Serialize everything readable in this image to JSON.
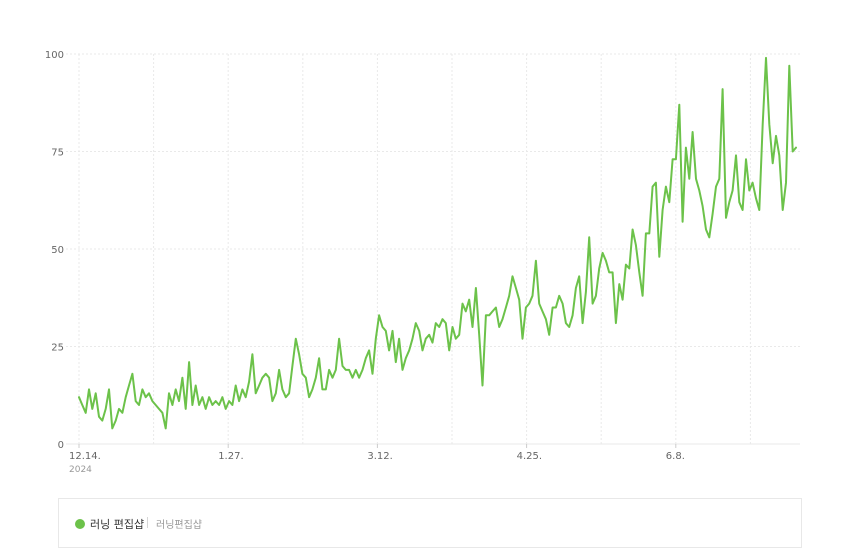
{
  "chart_data": {
    "type": "line",
    "title": "",
    "xlabel": "",
    "ylabel": "",
    "ylim": [
      0,
      100
    ],
    "y_ticks": [
      "0",
      "25",
      "50",
      "75",
      "100"
    ],
    "x_ticks": [
      "12.14.",
      "1.27.",
      "3.12.",
      "4.25.",
      "6.8."
    ],
    "x_year_label": "2024",
    "grid": true,
    "legend_position": "bottom",
    "colors": {
      "series": "#6cc24a",
      "grid": "#e9e9e9",
      "axis_text": "#666666"
    },
    "series": [
      {
        "name": "러닝 편집샵",
        "values": [
          12,
          10,
          8,
          14,
          9,
          13,
          7,
          6,
          9,
          14,
          4,
          6,
          9,
          8,
          12,
          15,
          18,
          11,
          10,
          14,
          12,
          13,
          11,
          10,
          9,
          8,
          4,
          13,
          10,
          14,
          11,
          17,
          9,
          21,
          10,
          15,
          10,
          12,
          9,
          12,
          10,
          11,
          10,
          12,
          9,
          11,
          10,
          15,
          11,
          14,
          12,
          16,
          23,
          13,
          15,
          17,
          18,
          17,
          11,
          13,
          19,
          14,
          12,
          13,
          20,
          27,
          23,
          18,
          17,
          12,
          14,
          17,
          22,
          14,
          14,
          19,
          17,
          19,
          27,
          20,
          19,
          19,
          17,
          19,
          17,
          19,
          22,
          24,
          18,
          27,
          33,
          30,
          29,
          24,
          29,
          21,
          27,
          19,
          22,
          24,
          27,
          31,
          29,
          24,
          27,
          28,
          26,
          31,
          30,
          32,
          31,
          24,
          30,
          27,
          28,
          36,
          34,
          37,
          30,
          40,
          28,
          15,
          33,
          33,
          34,
          35,
          30,
          32,
          35,
          38,
          43,
          40,
          37,
          27,
          35,
          36,
          38,
          47,
          36,
          34,
          32,
          28,
          35,
          35,
          38,
          36,
          31,
          30,
          33,
          40,
          43,
          31,
          39,
          53,
          36,
          38,
          45,
          49,
          47,
          44,
          44,
          31,
          41,
          37,
          46,
          45,
          55,
          51,
          44,
          38,
          54,
          54,
          66,
          67,
          48,
          60,
          66,
          62,
          73,
          73,
          87,
          57,
          76,
          68,
          80,
          68,
          65,
          61,
          55,
          53,
          59,
          66,
          68,
          91,
          58,
          62,
          65,
          74,
          62,
          60,
          73,
          65,
          67,
          63,
          60,
          82,
          99,
          82,
          72,
          79,
          74,
          60,
          67,
          97,
          75,
          76
        ]
      }
    ]
  },
  "legend": {
    "items": [
      {
        "label": "러닝 편집샵",
        "sub": "러닝편집샵"
      }
    ]
  }
}
